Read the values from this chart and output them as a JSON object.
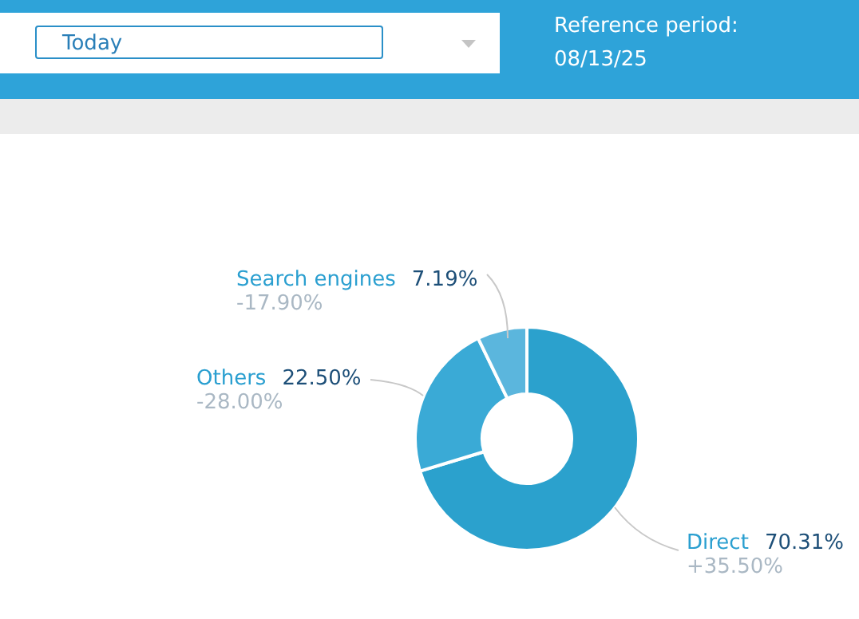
{
  "chart_data": {
    "type": "donut",
    "categories": [
      "Direct",
      "Others",
      "Search engines"
    ],
    "values": [
      70.31,
      22.5,
      7.19
    ],
    "colors": [
      "#2ba1cd",
      "#3aaad6",
      "#5bb6dd"
    ],
    "value_labels": [
      "70.31%",
      "22.50%",
      "7.19%"
    ],
    "annotations": [
      "Today",
      "Reference period:",
      "08/13/25",
      "+35.50%",
      "-28.00%",
      "-17.90%"
    ],
    "legend": false
  }
}
